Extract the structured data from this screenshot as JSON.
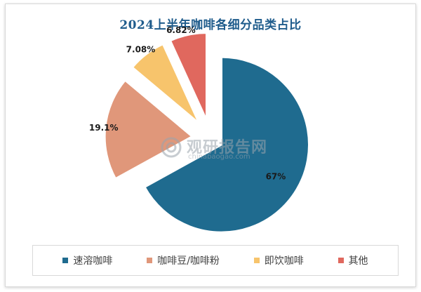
{
  "chart_data": {
    "type": "pie",
    "title": "2024上半年咖啡各细分品类占比",
    "categories": [
      "速溶咖啡",
      "咖啡豆/咖啡粉",
      "即饮咖啡",
      "其他"
    ],
    "values": [
      67,
      19.1,
      7.08,
      6.82
    ],
    "data_labels": [
      "67%",
      "19.1%",
      "7.08%",
      "6.82%"
    ],
    "colors": [
      "#1f6b8f",
      "#e0977a",
      "#f7c46c",
      "#e0685e"
    ],
    "exploded": true,
    "legend_position": "bottom"
  },
  "watermark": {
    "main": "观研报告网",
    "sub": "chinabaogao.com"
  }
}
